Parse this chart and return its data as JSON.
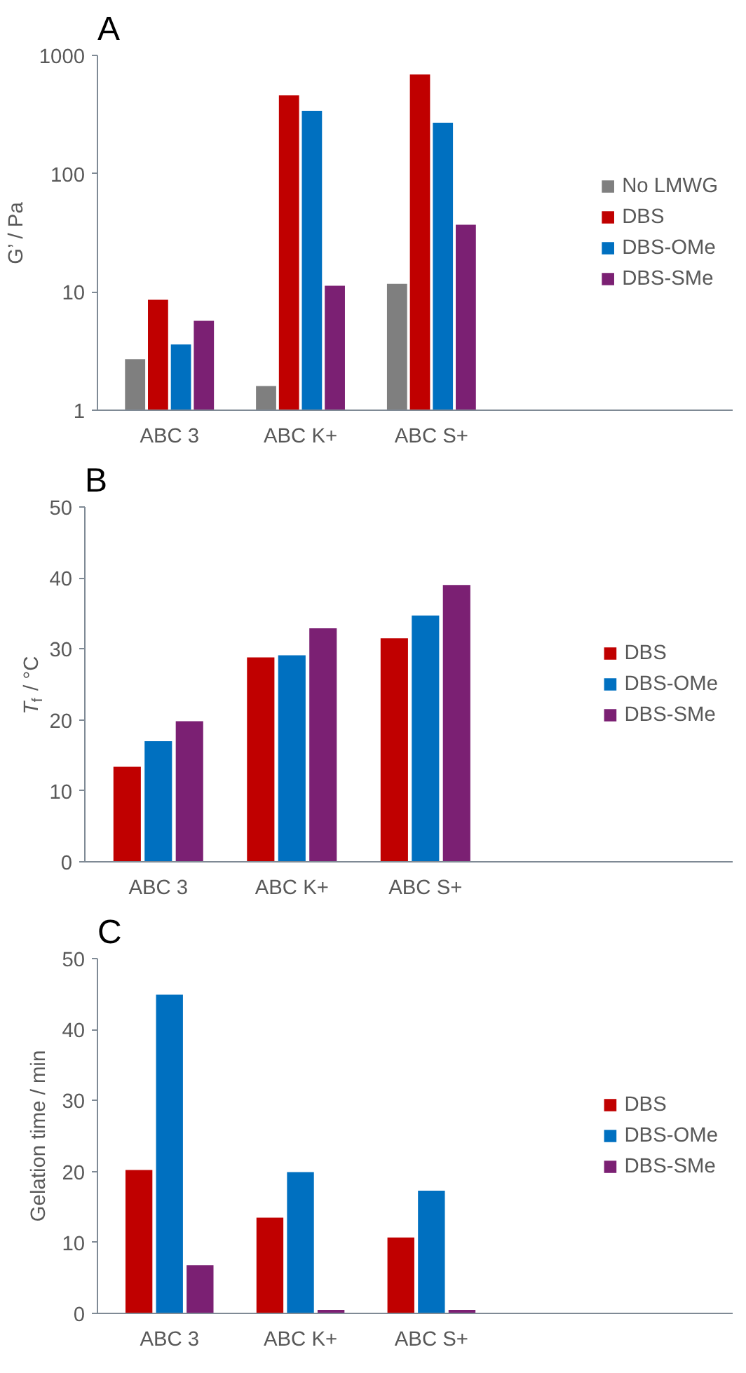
{
  "chart_data": [
    {
      "type": "bar",
      "title": "A",
      "ylabel": "G’ / Pa",
      "categories": [
        "ABC 3",
        "ABC K+",
        "ABC S+"
      ],
      "log": "y",
      "ylim": [
        1,
        1000
      ],
      "yticks": [
        1,
        10,
        100,
        1000
      ],
      "grid": false,
      "legend": "right",
      "series": [
        {
          "name": "No LMWG",
          "color": "#7f7f7f",
          "values": [
            2.7,
            1.6,
            11.7
          ]
        },
        {
          "name": "DBS",
          "color": "#c00000",
          "values": [
            8.6,
            460,
            690
          ]
        },
        {
          "name": "DBS-OMe",
          "color": "#0070c0",
          "values": [
            3.6,
            340,
            270
          ]
        },
        {
          "name": "DBS-SMe",
          "color": "#7b2073",
          "values": [
            5.7,
            11.3,
            37
          ]
        }
      ]
    },
    {
      "type": "bar",
      "title": "B",
      "ylabel": "T$_{f}$ / °C",
      "categories": [
        "ABC 3",
        "ABC K+",
        "ABC S+"
      ],
      "ylim": [
        0,
        50
      ],
      "yticks": [
        0,
        10,
        20,
        30,
        40,
        50
      ],
      "grid": false,
      "legend": "right",
      "series": [
        {
          "name": "DBS",
          "color": "#c00000",
          "values": [
            13.4,
            28.8,
            31.5
          ]
        },
        {
          "name": "DBS-OMe",
          "color": "#0070c0",
          "values": [
            17.0,
            29.1,
            34.7
          ]
        },
        {
          "name": "DBS-SMe",
          "color": "#7b2073",
          "values": [
            19.8,
            32.9,
            39.0
          ]
        }
      ]
    },
    {
      "type": "bar",
      "title": "C",
      "ylabel": "Gelation time / min",
      "categories": [
        "ABC 3",
        "ABC K+",
        "ABC S+"
      ],
      "ylim": [
        0,
        50
      ],
      "yticks": [
        0,
        10,
        20,
        30,
        40,
        50
      ],
      "grid": false,
      "legend": "right",
      "series": [
        {
          "name": "DBS",
          "color": "#c00000",
          "values": [
            20.2,
            13.5,
            10.7
          ]
        },
        {
          "name": "DBS-OMe",
          "color": "#0070c0",
          "values": [
            44.9,
            19.9,
            17.3
          ]
        },
        {
          "name": "DBS-SMe",
          "color": "#7b2073",
          "values": [
            6.8,
            0.5,
            0.5
          ]
        }
      ]
    }
  ]
}
